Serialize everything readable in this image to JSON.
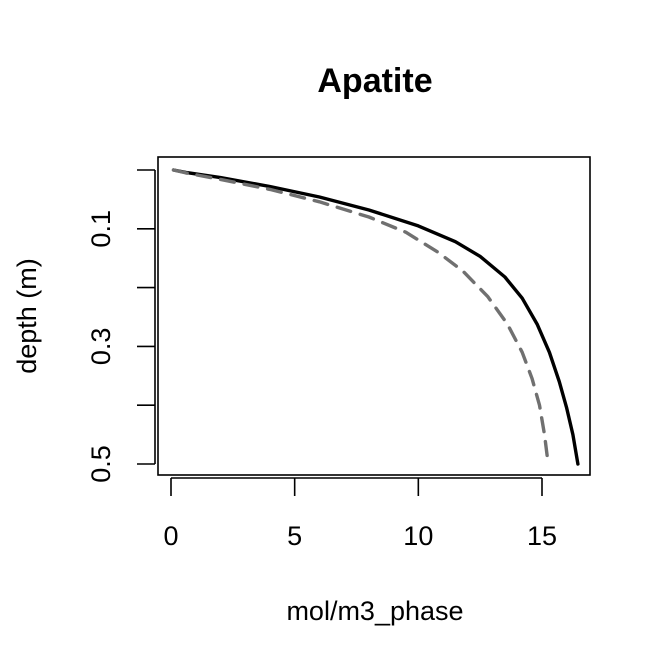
{
  "chart_data": {
    "type": "line",
    "title": "Apatite",
    "xlabel": "mol/m3_phase",
    "ylabel": "depth (m)",
    "xlim": [
      0,
      16.5
    ],
    "ylim": [
      0.5,
      0
    ],
    "x_ticks": [
      0,
      5,
      10,
      15
    ],
    "x_tick_labels": [
      "0",
      "5",
      "10",
      "15"
    ],
    "y_ticks": [
      0,
      0.1,
      0.2,
      0.3,
      0.4,
      0.5
    ],
    "y_tick_labels": [
      "",
      "0.1",
      "",
      "0.3",
      "",
      "0.5"
    ],
    "grid": false,
    "series": [
      {
        "style": "solid",
        "color": "#000000",
        "points": [
          {
            "x": 0.1,
            "y": 0.0
          },
          {
            "x": 0.6,
            "y": 0.004
          },
          {
            "x": 2.0,
            "y": 0.013
          },
          {
            "x": 4.0,
            "y": 0.028
          },
          {
            "x": 6.0,
            "y": 0.046
          },
          {
            "x": 8.0,
            "y": 0.068
          },
          {
            "x": 10.0,
            "y": 0.095
          },
          {
            "x": 11.5,
            "y": 0.122
          },
          {
            "x": 12.5,
            "y": 0.147
          },
          {
            "x": 13.5,
            "y": 0.182
          },
          {
            "x": 14.2,
            "y": 0.218
          },
          {
            "x": 14.8,
            "y": 0.262
          },
          {
            "x": 15.3,
            "y": 0.31
          },
          {
            "x": 15.7,
            "y": 0.36
          },
          {
            "x": 16.0,
            "y": 0.405
          },
          {
            "x": 16.25,
            "y": 0.45
          },
          {
            "x": 16.45,
            "y": 0.5
          }
        ]
      },
      {
        "style": "dashed",
        "color": "#707070",
        "points": [
          {
            "x": 0.1,
            "y": 0.0
          },
          {
            "x": 0.6,
            "y": 0.005
          },
          {
            "x": 2.0,
            "y": 0.016
          },
          {
            "x": 4.0,
            "y": 0.033
          },
          {
            "x": 6.0,
            "y": 0.054
          },
          {
            "x": 8.0,
            "y": 0.08
          },
          {
            "x": 9.5,
            "y": 0.106
          },
          {
            "x": 10.8,
            "y": 0.14
          },
          {
            "x": 11.8,
            "y": 0.172
          },
          {
            "x": 12.8,
            "y": 0.215
          },
          {
            "x": 13.6,
            "y": 0.262
          },
          {
            "x": 14.2,
            "y": 0.31
          },
          {
            "x": 14.6,
            "y": 0.355
          },
          {
            "x": 14.9,
            "y": 0.4
          },
          {
            "x": 15.1,
            "y": 0.45
          },
          {
            "x": 15.25,
            "y": 0.5
          }
        ]
      }
    ]
  }
}
